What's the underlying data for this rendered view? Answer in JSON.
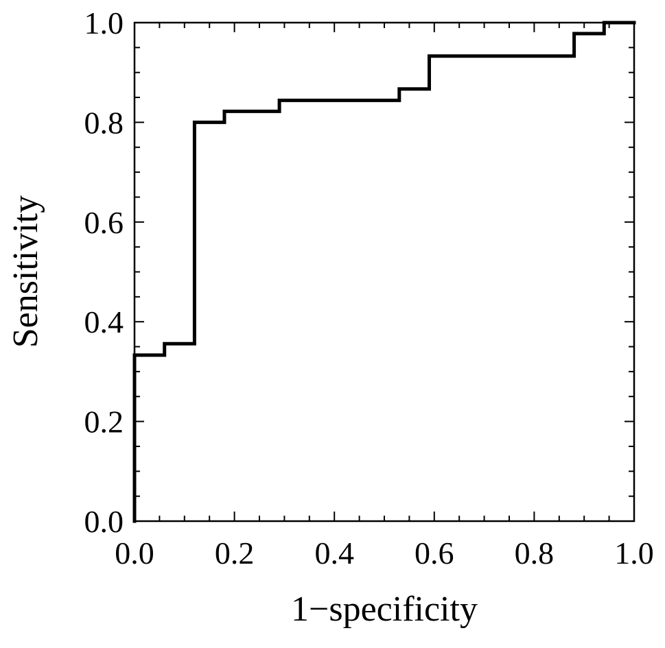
{
  "chart_data": {
    "type": "line",
    "title": "",
    "xlabel": "1−specificity",
    "ylabel": "Sensitivity",
    "xlim": [
      0.0,
      1.0
    ],
    "ylim": [
      0.0,
      1.0
    ],
    "x_ticks": [
      "0.0",
      "0.2",
      "0.4",
      "0.6",
      "0.8",
      "1.0"
    ],
    "y_ticks": [
      "0.0",
      "0.2",
      "0.4",
      "0.6",
      "0.8",
      "1.0"
    ],
    "grid": false,
    "legend": "none",
    "series": [
      {
        "step": true,
        "x": [
          0.0,
          0.0,
          0.06,
          0.06,
          0.12,
          0.12,
          0.18,
          0.18,
          0.29,
          0.29,
          0.53,
          0.53,
          0.59,
          0.59,
          0.88,
          0.88,
          0.94,
          0.94,
          1.0
        ],
        "y": [
          0.0,
          0.333,
          0.333,
          0.356,
          0.356,
          0.8,
          0.8,
          0.822,
          0.822,
          0.844,
          0.844,
          0.867,
          0.867,
          0.933,
          0.933,
          0.978,
          0.978,
          1.0,
          1.0
        ]
      }
    ]
  }
}
